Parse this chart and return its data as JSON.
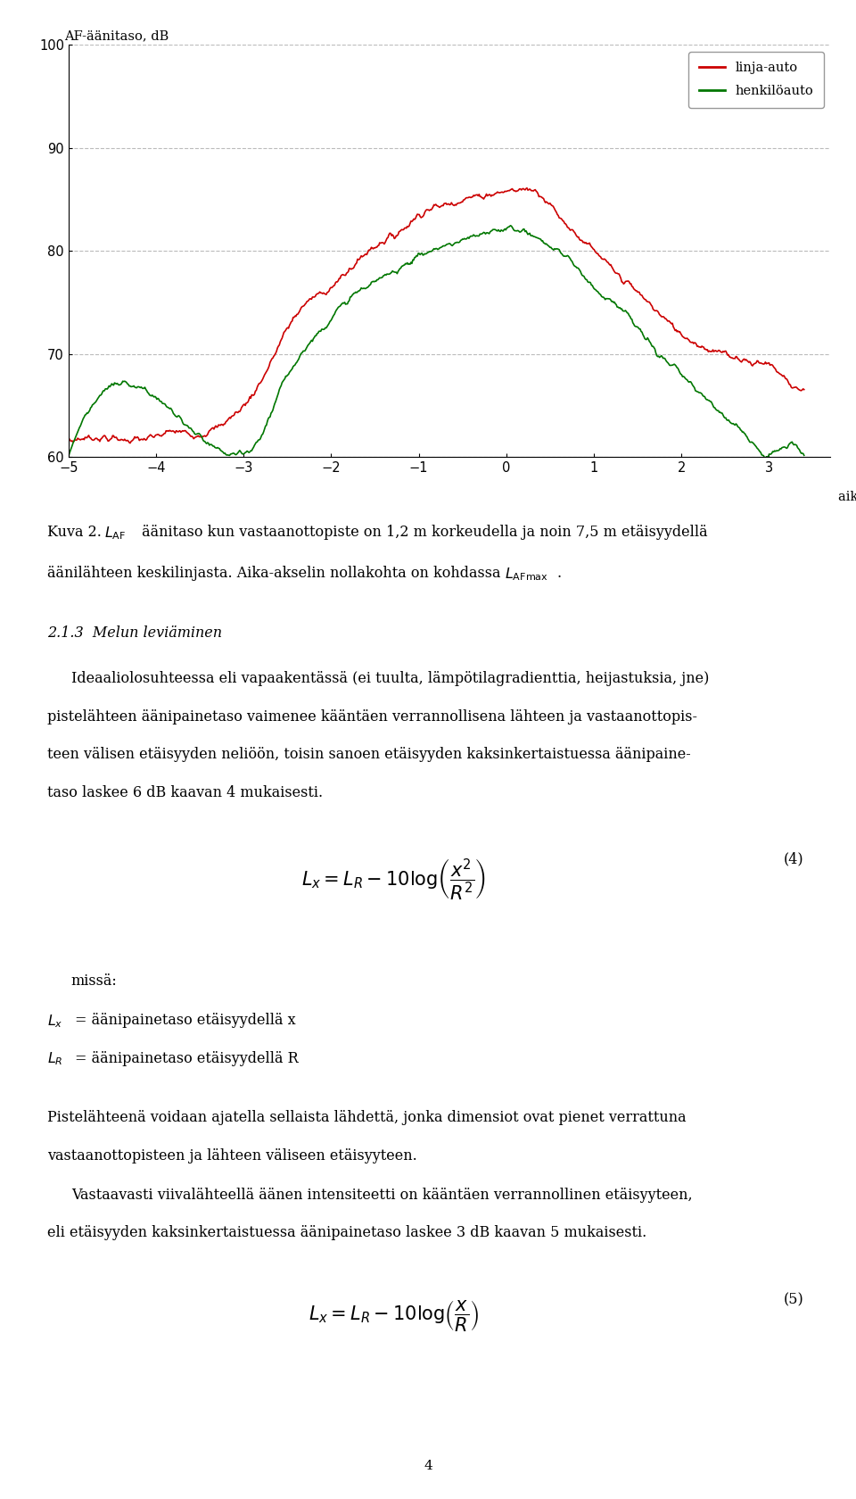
{
  "chart_ylabel": "AF-äänitaso, dB",
  "chart_xlabel": "aika, s",
  "ylim": [
    60,
    100
  ],
  "xlim": [
    -5,
    3.7
  ],
  "yticks": [
    60,
    70,
    80,
    90,
    100
  ],
  "xticks": [
    -5,
    -4,
    -3,
    -2,
    -1,
    0,
    1,
    2,
    3
  ],
  "legend_entries": [
    "linja-auto",
    "henkilöauto"
  ],
  "line_color_red": "#cc0000",
  "line_color_green": "#007700",
  "background_color": "#ffffff",
  "red_knots_x": [
    -5.0,
    -4.5,
    -4.0,
    -3.8,
    -3.5,
    -3.2,
    -3.0,
    -2.7,
    -2.5,
    -2.2,
    -2.0,
    -1.7,
    -1.5,
    -1.2,
    -1.0,
    -0.7,
    -0.5,
    -0.2,
    0.0,
    0.2,
    0.35,
    0.5,
    0.7,
    1.0,
    1.3,
    1.5,
    1.8,
    2.0,
    2.3,
    2.5,
    2.7,
    2.8,
    3.0,
    3.2,
    3.4
  ],
  "red_knots_y": [
    61.5,
    61.8,
    62.0,
    62.5,
    62.2,
    63.5,
    65.0,
    69.0,
    72.5,
    75.5,
    76.5,
    79.0,
    80.5,
    82.0,
    83.5,
    84.5,
    85.0,
    85.5,
    85.8,
    86.0,
    85.8,
    84.5,
    82.5,
    80.0,
    77.5,
    76.0,
    73.5,
    72.0,
    70.5,
    70.0,
    69.5,
    69.2,
    69.0,
    67.5,
    66.5
  ],
  "green_knots_x": [
    -5.0,
    -3.1,
    -3.0,
    -2.9,
    -2.7,
    -2.5,
    -2.3,
    -2.0,
    -1.7,
    -1.5,
    -1.2,
    -1.0,
    -0.7,
    -0.5,
    -0.2,
    0.0,
    0.1,
    0.3,
    0.5,
    0.8,
    1.0,
    1.3,
    1.5,
    1.8,
    2.0,
    2.3,
    2.5,
    2.7,
    2.8,
    2.85,
    2.9,
    3.0,
    3.4
  ],
  "green_knots_y": [
    60.2,
    60.2,
    60.3,
    60.8,
    64.0,
    68.0,
    70.5,
    73.5,
    76.0,
    77.0,
    78.5,
    79.5,
    80.5,
    81.0,
    81.8,
    82.2,
    82.2,
    81.5,
    80.5,
    78.5,
    76.5,
    74.5,
    72.5,
    69.5,
    68.0,
    65.5,
    64.0,
    62.5,
    61.5,
    61.0,
    60.5,
    60.2,
    60.2
  ]
}
